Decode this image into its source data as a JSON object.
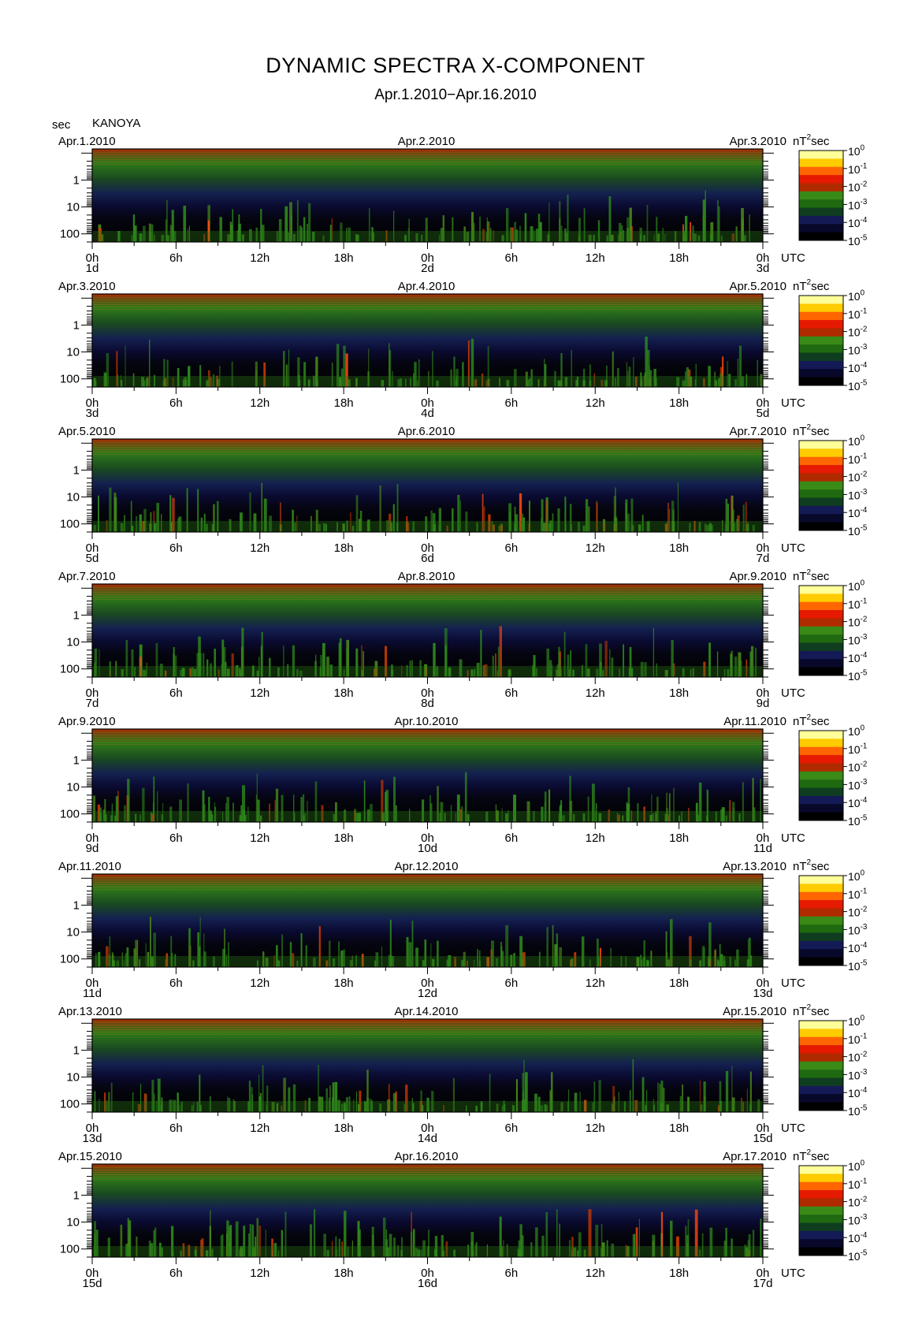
{
  "title": "DYNAMIC SPECTRA X-COMPONENT",
  "subtitle": "Apr.1.2010−Apr.16.2010",
  "station": "KANOYA",
  "period_unit": "sec",
  "colorbar_unit_base": "nT",
  "colorbar_unit_exp": "2",
  "colorbar_unit_suffix": "sec",
  "colorbar_ticks": [
    {
      "base": "10",
      "exp": "0"
    },
    {
      "base": "10",
      "exp": "-1"
    },
    {
      "base": "10",
      "exp": "-2"
    },
    {
      "base": "10",
      "exp": "-3"
    },
    {
      "base": "10",
      "exp": "-4"
    },
    {
      "base": "10",
      "exp": "-5"
    }
  ],
  "colorbar_colors": [
    "#ffff99",
    "#ffcc00",
    "#ff6600",
    "#e51a00",
    "#b02a00",
    "#3a8a18",
    "#1f6a10",
    "#0f3d20",
    "#141a55",
    "#08082a",
    "#000000"
  ],
  "y_tick_labels": [
    "1",
    "10",
    "100"
  ],
  "x_tick_labels": [
    "0h",
    "6h",
    "12h",
    "18h",
    "0h",
    "6h",
    "12h",
    "18h",
    "0h"
  ],
  "utc_label": "UTC",
  "chart_data": {
    "type": "heatmap",
    "xlabel": "UTC",
    "ylabel": "sec",
    "yscale": "log",
    "y_ticks": [
      1,
      10,
      100
    ],
    "color_scale": "log",
    "color_range": [
      1e-05,
      1
    ],
    "panels": [
      {
        "date_left": "Apr.1.2010",
        "date_mid": "Apr.2.2010",
        "date_right": "Apr.3.2010",
        "day_labels": [
          "1d",
          "2d",
          "3d"
        ]
      },
      {
        "date_left": "Apr.3.2010",
        "date_mid": "Apr.4.2010",
        "date_right": "Apr.5.2010",
        "day_labels": [
          "3d",
          "4d",
          "5d"
        ]
      },
      {
        "date_left": "Apr.5.2010",
        "date_mid": "Apr.6.2010",
        "date_right": "Apr.7.2010",
        "day_labels": [
          "5d",
          "6d",
          "7d"
        ]
      },
      {
        "date_left": "Apr.7.2010",
        "date_mid": "Apr.8.2010",
        "date_right": "Apr.9.2010",
        "day_labels": [
          "7d",
          "8d",
          "9d"
        ]
      },
      {
        "date_left": "Apr.9.2010",
        "date_mid": "Apr.10.2010",
        "date_right": "Apr.11.2010",
        "day_labels": [
          "9d",
          "10d",
          "11d"
        ]
      },
      {
        "date_left": "Apr.11.2010",
        "date_mid": "Apr.12.2010",
        "date_right": "Apr.13.2010",
        "day_labels": [
          "11d",
          "12d",
          "13d"
        ]
      },
      {
        "date_left": "Apr.13.2010",
        "date_mid": "Apr.14.2010",
        "date_right": "Apr.15.2010",
        "day_labels": [
          "13d",
          "14d",
          "15d"
        ]
      },
      {
        "date_left": "Apr.15.2010",
        "date_mid": "Apr.16.2010",
        "date_right": "Apr.17.2010",
        "day_labels": [
          "15d",
          "16d",
          "17d"
        ]
      }
    ]
  }
}
